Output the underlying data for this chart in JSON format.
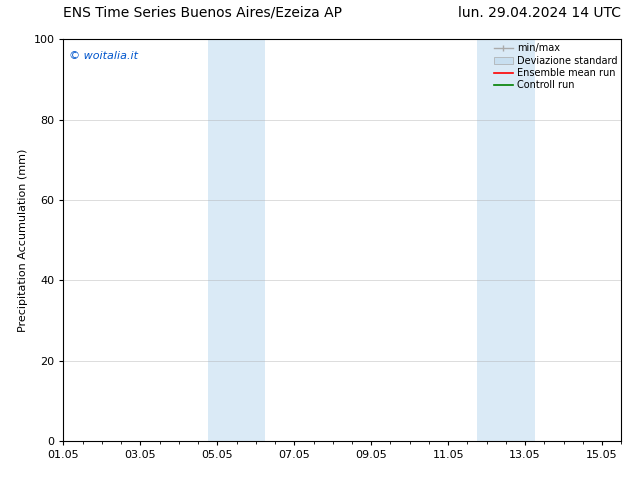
{
  "title_left": "ENS Time Series Buenos Aires/Ezeiza AP",
  "title_right": "lun. 29.04.2024 14 UTC",
  "ylabel": "Precipitation Accumulation (mm)",
  "ylim": [
    0,
    100
  ],
  "yticks": [
    0,
    20,
    40,
    60,
    80,
    100
  ],
  "xlim": [
    0,
    14.5
  ],
  "xtick_labels": [
    "01.05",
    "03.05",
    "05.05",
    "07.05",
    "09.05",
    "11.05",
    "13.05",
    "15.05"
  ],
  "xtick_positions_days": [
    0.0,
    2.0,
    4.0,
    6.0,
    8.0,
    10.0,
    12.0,
    14.0
  ],
  "shaded_regions": [
    {
      "x_start_day": 3.75,
      "x_end_day": 5.25,
      "color": "#daeaf6"
    },
    {
      "x_start_day": 10.75,
      "x_end_day": 12.25,
      "color": "#daeaf6"
    }
  ],
  "legend_items": [
    {
      "label": "min/max",
      "color": "#aaaaaa",
      "style": "minmax"
    },
    {
      "label": "Deviazione standard",
      "color": "#c8dff0",
      "style": "std"
    },
    {
      "label": "Ensemble mean run",
      "color": "#ff0000",
      "style": "line"
    },
    {
      "label": "Controll run",
      "color": "#008000",
      "style": "line"
    }
  ],
  "watermark_text": "© woitalia.it",
  "watermark_color": "#0055cc",
  "background_color": "#ffffff",
  "grid_color": "#aaaaaa",
  "title_fontsize": 10,
  "axis_fontsize": 8,
  "tick_fontsize": 8,
  "legend_fontsize": 7,
  "watermark_fontsize": 8
}
